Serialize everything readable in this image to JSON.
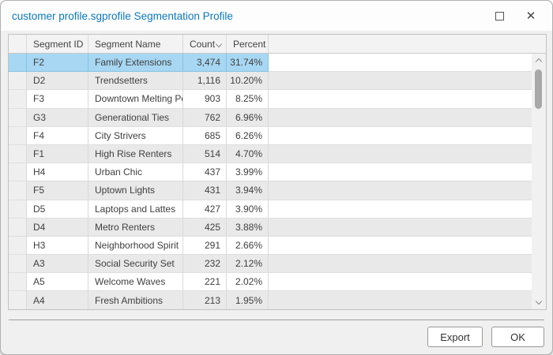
{
  "window": {
    "title": "customer profile.sgprofile Segmentation Profile",
    "controls": {
      "maximize": "maximize",
      "close": "close"
    }
  },
  "table": {
    "columns": {
      "segment_id": "Segment ID",
      "segment_name": "Segment Name",
      "count": "Count",
      "percent": "Percent"
    },
    "sorted_column": "Count",
    "rows": [
      {
        "id": "F2",
        "name": "Family Extensions",
        "count": "3,474",
        "percent": "31.74%",
        "selected": true
      },
      {
        "id": "D2",
        "name": "Trendsetters",
        "count": "1,116",
        "percent": "10.20%",
        "selected": false
      },
      {
        "id": "F3",
        "name": "Downtown Melting Pot",
        "count": "903",
        "percent": "8.25%",
        "selected": false
      },
      {
        "id": "G3",
        "name": "Generational Ties",
        "count": "762",
        "percent": "6.96%",
        "selected": false
      },
      {
        "id": "F4",
        "name": "City Strivers",
        "count": "685",
        "percent": "6.26%",
        "selected": false
      },
      {
        "id": "F1",
        "name": "High Rise Renters",
        "count": "514",
        "percent": "4.70%",
        "selected": false
      },
      {
        "id": "H4",
        "name": "Urban Chic",
        "count": "437",
        "percent": "3.99%",
        "selected": false
      },
      {
        "id": "F5",
        "name": "Uptown Lights",
        "count": "431",
        "percent": "3.94%",
        "selected": false
      },
      {
        "id": "D5",
        "name": "Laptops and Lattes",
        "count": "427",
        "percent": "3.90%",
        "selected": false
      },
      {
        "id": "D4",
        "name": "Metro Renters",
        "count": "425",
        "percent": "3.88%",
        "selected": false
      },
      {
        "id": "H3",
        "name": "Neighborhood Spirit",
        "count": "291",
        "percent": "2.66%",
        "selected": false
      },
      {
        "id": "A3",
        "name": "Social Security Set",
        "count": "232",
        "percent": "2.12%",
        "selected": false
      },
      {
        "id": "A5",
        "name": "Welcome Waves",
        "count": "221",
        "percent": "2.02%",
        "selected": false
      },
      {
        "id": "A4",
        "name": "Fresh Ambitions",
        "count": "213",
        "percent": "1.95%",
        "selected": false
      }
    ]
  },
  "buttons": {
    "export": "Export",
    "ok": "OK"
  },
  "colors": {
    "title_text": "#0c79be",
    "selected_row": "#a7d7f2",
    "row_alt": "#e9e9e9",
    "dialog_bg": "#f0f0f1"
  }
}
